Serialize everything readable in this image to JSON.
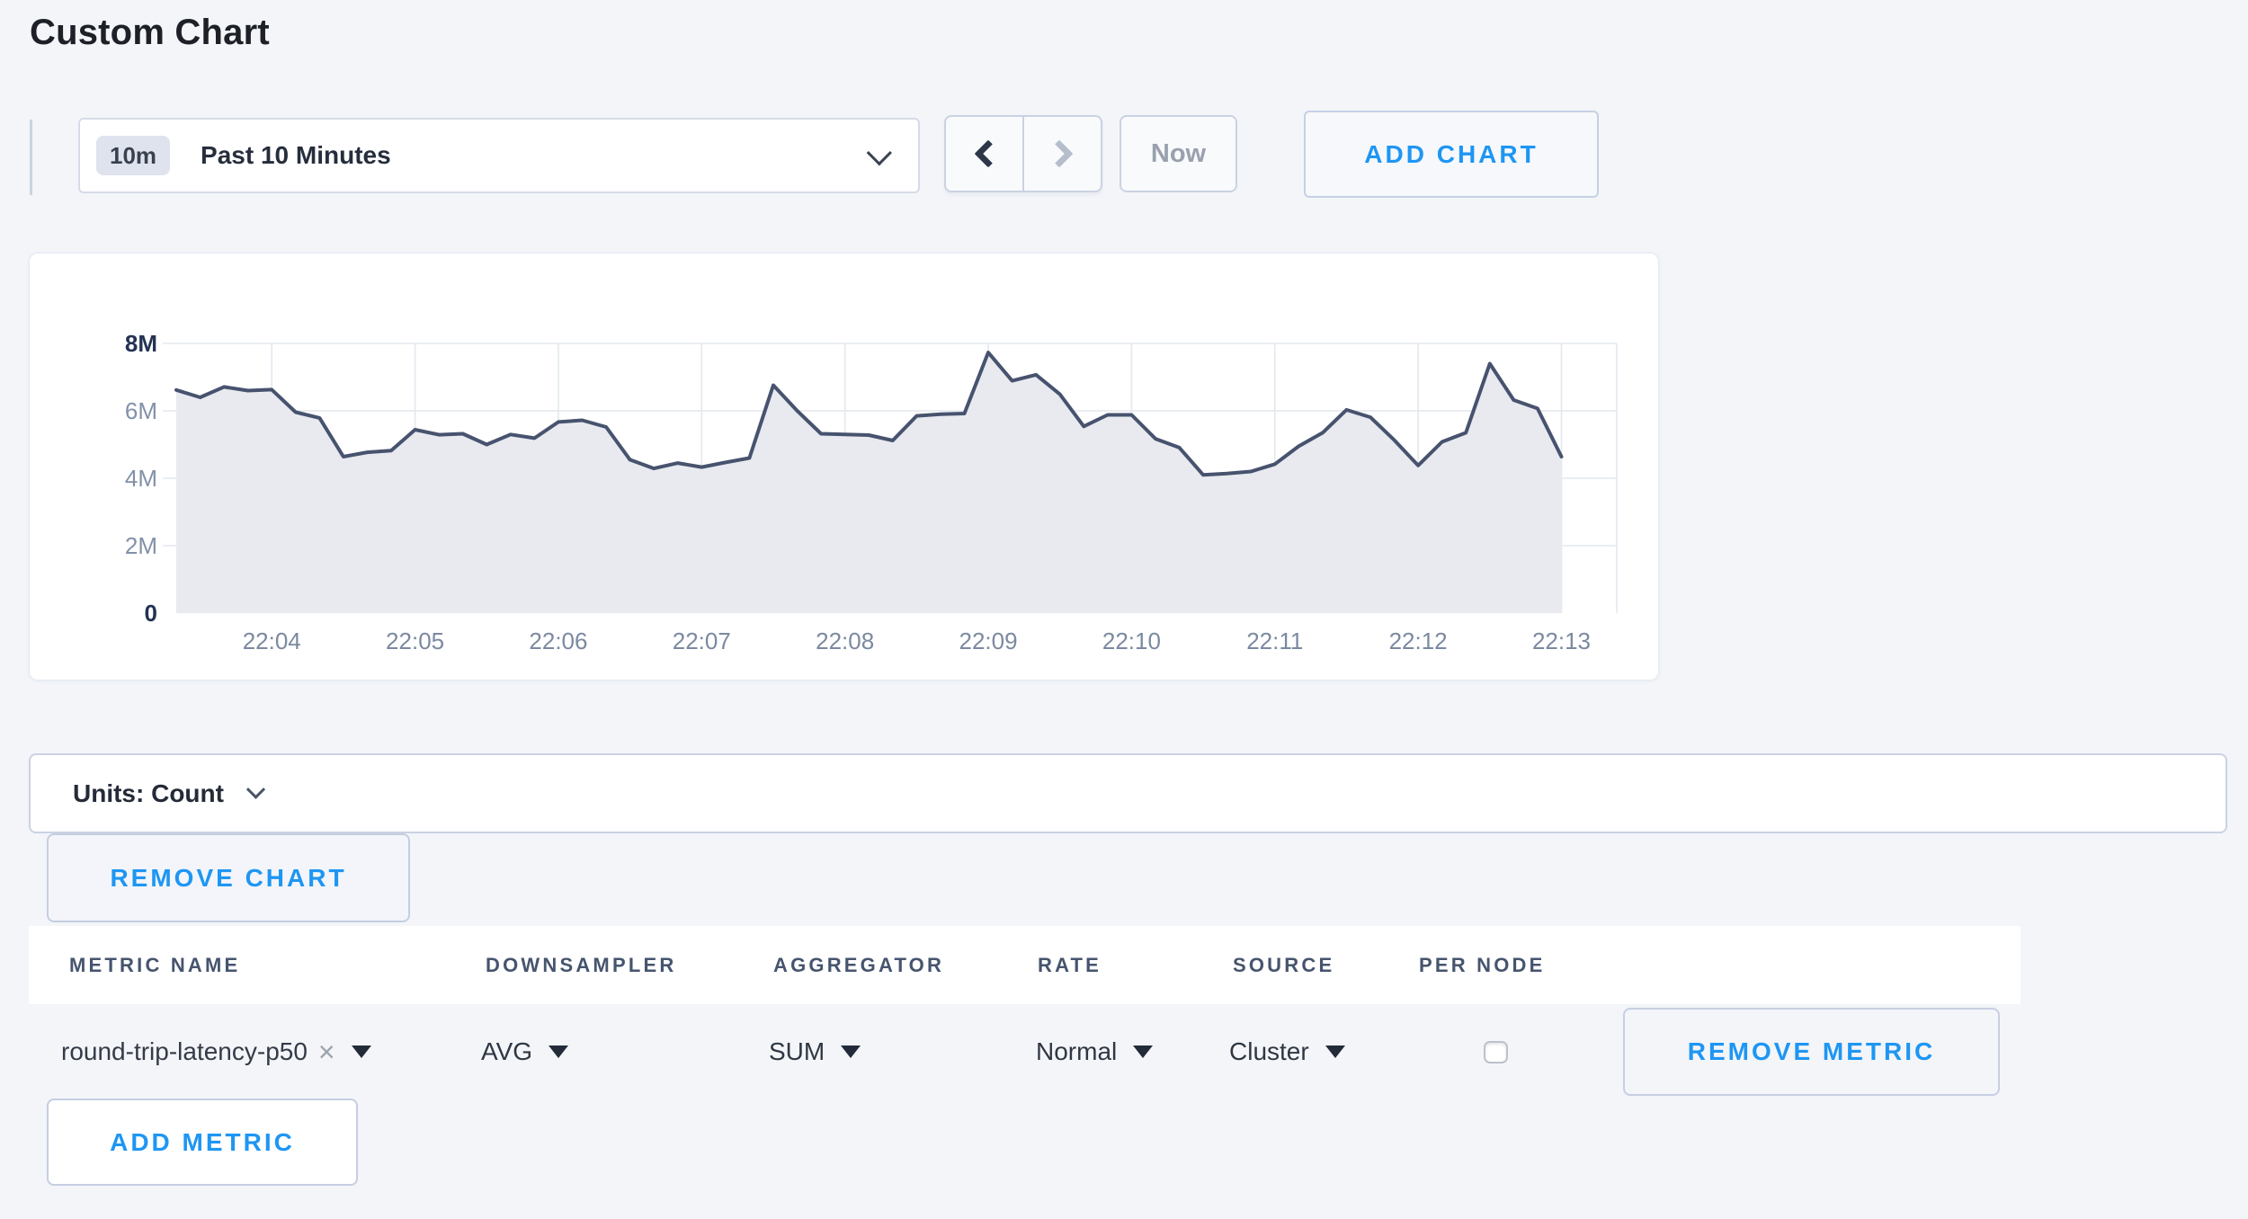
{
  "page": {
    "title": "Custom Chart"
  },
  "toolbar": {
    "time_range": {
      "badge": "10m",
      "label": "Past 10 Minutes"
    },
    "now_label": "Now",
    "add_chart_label": "ADD CHART"
  },
  "chart": {
    "units_label": "Units: Count",
    "remove_chart_label": "REMOVE CHART"
  },
  "metrics_table": {
    "columns": [
      "METRIC NAME",
      "DOWNSAMPLER",
      "AGGREGATOR",
      "RATE",
      "SOURCE",
      "PER NODE"
    ],
    "rows": [
      {
        "metric_name": "round-trip-latency-p50",
        "remove_tag": "×",
        "downsampler": "AVG",
        "aggregator": "SUM",
        "rate": "Normal",
        "source": "Cluster",
        "per_node_checked": false
      }
    ],
    "remove_metric_label": "REMOVE METRIC",
    "add_metric_label": "ADD METRIC"
  },
  "chart_data": {
    "type": "area",
    "title": "",
    "legend": "none",
    "grid": true,
    "ylim": [
      0,
      8000000
    ],
    "x_start": "22:03:20",
    "x_interval_seconds": 10,
    "x_tick_labels": [
      "22:04",
      "22:05",
      "22:06",
      "22:07",
      "22:08",
      "22:09",
      "22:10",
      "22:11",
      "22:12",
      "22:13"
    ],
    "x_first_tick_index": 4,
    "x_tick_every": 6,
    "y_ticks": [
      {
        "label": "0",
        "value": 0,
        "bold": true
      },
      {
        "label": "2M",
        "value": 2000000,
        "bold": false
      },
      {
        "label": "4M",
        "value": 4000000,
        "bold": false
      },
      {
        "label": "6M",
        "value": 6000000,
        "bold": false
      },
      {
        "label": "8M",
        "value": 8000000,
        "bold": true
      }
    ],
    "series": [
      {
        "name": "round-trip-latency-p50",
        "values": [
          6620000,
          6400000,
          6710000,
          6600000,
          6630000,
          5960000,
          5790000,
          4640000,
          4770000,
          4820000,
          5440000,
          5290000,
          5320000,
          5000000,
          5300000,
          5190000,
          5670000,
          5720000,
          5520000,
          4550000,
          4290000,
          4450000,
          4330000,
          4470000,
          4600000,
          6760000,
          6000000,
          5320000,
          5300000,
          5280000,
          5120000,
          5850000,
          5900000,
          5920000,
          7730000,
          6890000,
          7070000,
          6490000,
          5540000,
          5880000,
          5880000,
          5170000,
          4910000,
          4100000,
          4140000,
          4200000,
          4420000,
          4950000,
          5350000,
          6030000,
          5810000,
          5130000,
          4380000,
          5080000,
          5350000,
          7400000,
          6320000,
          6070000,
          4640000
        ]
      }
    ],
    "line_color": "#47536e",
    "fill_color": "#e8eaf0",
    "grid_color": "#e4e8ee",
    "axis_label_color": "#8291a9",
    "axis_label_bold_color": "#243353",
    "x_label_color": "#7b89a0"
  }
}
